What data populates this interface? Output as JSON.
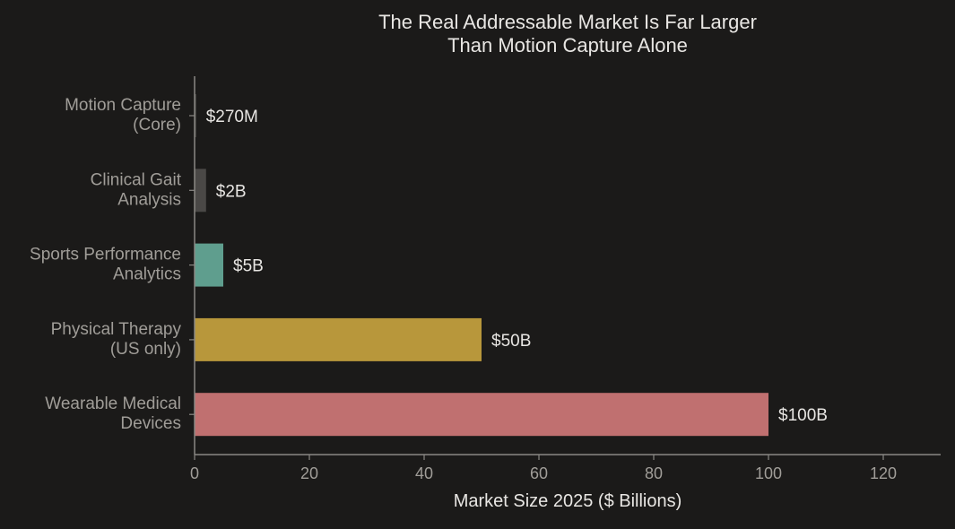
{
  "chart_data": {
    "type": "bar",
    "orientation": "horizontal",
    "title": "The Real Addressable Market Is Far Larger\nThan Motion Capture Alone",
    "xlabel": "Market Size 2025 ($ Billions)",
    "ylabel": "",
    "xlim": [
      0,
      130
    ],
    "xticks": [
      0,
      20,
      40,
      60,
      80,
      100,
      120
    ],
    "grid": false,
    "categories": [
      "Motion Capture\n(Core)",
      "Clinical Gait\nAnalysis",
      "Sports Performance\nAnalytics",
      "Physical Therapy\n(US only)",
      "Wearable Medical\nDevices"
    ],
    "values": [
      0.27,
      2,
      5,
      50,
      100
    ],
    "data_labels": [
      "$270M",
      "$2B",
      "$5B",
      "$50B",
      "$100B"
    ],
    "colors": [
      "#4a4846",
      "#4a4846",
      "#5f9e8e",
      "#b8973b",
      "#c07070"
    ]
  },
  "theme": {
    "background": "#1b1a19",
    "axis": "#8a8884",
    "text": "#e8e6e3",
    "muted": "#a09d98"
  }
}
